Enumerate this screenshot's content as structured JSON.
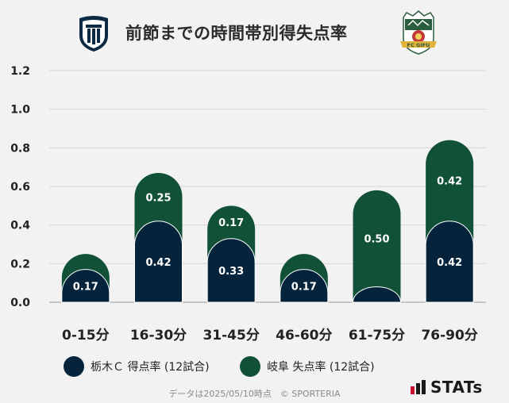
{
  "header": {
    "title": "前節までの時間帯別得失点率",
    "left_logo": {
      "icon": "tochigi-sc-crest-icon"
    },
    "right_logo": {
      "icon": "fc-gifu-crest-icon",
      "text": "FC GIFU"
    }
  },
  "chart_data": {
    "type": "bar",
    "stacked": true,
    "categories": [
      "0-15分",
      "16-30分",
      "31-45分",
      "46-60分",
      "61-75分",
      "76-90分"
    ],
    "series": [
      {
        "name": "栃木Ｃ 得点率 (12試合)",
        "color": "#05243b",
        "values": [
          0.17,
          0.42,
          0.33,
          0.17,
          0.08,
          0.42
        ],
        "labels": [
          "0.17",
          "0.42",
          "0.33",
          "0.17",
          "",
          "0.42"
        ]
      },
      {
        "name": "岐阜 失点率 (12試合)",
        "color": "#115138",
        "values": [
          0.08,
          0.25,
          0.17,
          0.08,
          0.5,
          0.42
        ],
        "labels": [
          "",
          "0.25",
          "0.17",
          "",
          "0.50",
          "0.42"
        ]
      }
    ],
    "ylim": [
      0,
      1.2
    ],
    "yticks": [
      "0.0",
      "0.2",
      "0.4",
      "0.6",
      "0.8",
      "1.0",
      "1.2"
    ],
    "grid": true,
    "legend_position": "bottom"
  },
  "footer": {
    "note": "データは2025/05/10時点　© SPORTERIA",
    "brand": "STATs"
  }
}
